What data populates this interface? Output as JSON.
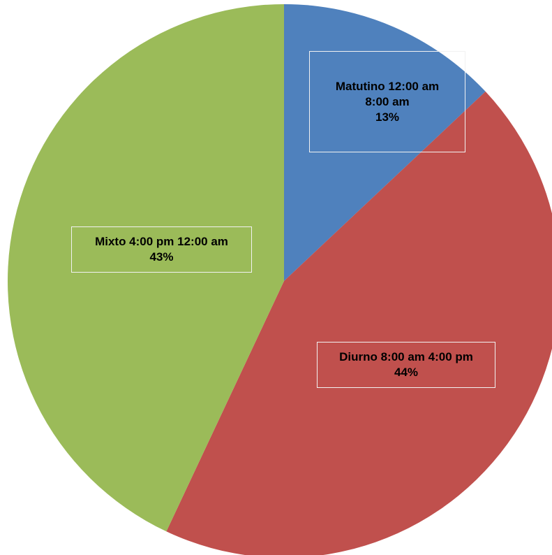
{
  "chart_data": {
    "type": "pie",
    "title": "",
    "start_angle_deg": 0,
    "direction": "clockwise",
    "slices": [
      {
        "label_lines": [
          "Matutino 12:00 am",
          "8:00 am"
        ],
        "percent_label": "13%",
        "value": 13,
        "color": "#4F81BD"
      },
      {
        "label_lines": [
          "Diurno 8:00 am 4:00 pm"
        ],
        "percent_label": "44%",
        "value": 44,
        "color": "#C0504D"
      },
      {
        "label_lines": [
          "Mixto 4:00 pm 12:00 am"
        ],
        "percent_label": "43%",
        "value": 43,
        "color": "#9BBB59"
      }
    ]
  }
}
